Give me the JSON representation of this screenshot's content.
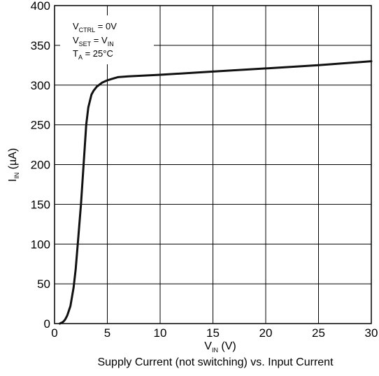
{
  "chart_data": {
    "type": "line",
    "title": "",
    "caption": "Supply Current (not switching) vs. Input Current",
    "xlabel": {
      "main": "V",
      "sub": "IN",
      "suffix": " (V)"
    },
    "ylabel": {
      "main": "I",
      "sub": "IN",
      "suffix": " (µA)"
    },
    "xlim": [
      0,
      30
    ],
    "ylim": [
      0,
      400
    ],
    "xticks": [
      0,
      5,
      10,
      15,
      20,
      25,
      30
    ],
    "yticks": [
      0,
      50,
      100,
      150,
      200,
      250,
      300,
      350,
      400
    ],
    "grid": true,
    "annotations": [
      {
        "main": "V",
        "sub": "CTRL",
        "rest": " = 0V"
      },
      {
        "main": "V",
        "sub": "SET",
        "rest": " = V",
        "sub2": "IN"
      },
      {
        "main": "T",
        "sub": "A",
        "rest": " = 25°C"
      }
    ],
    "series": [
      {
        "color": "#111111",
        "x": [
          0.5,
          0.8,
          1.0,
          1.2,
          1.5,
          1.8,
          2.0,
          2.2,
          2.5,
          2.8,
          3.0,
          3.2,
          3.5,
          3.7,
          4.0,
          4.5,
          5.0,
          5.5,
          6.0,
          7.0,
          10,
          15,
          20,
          25,
          30
        ],
        "y": [
          0,
          2,
          5,
          10,
          22,
          45,
          68,
          100,
          150,
          210,
          250,
          272,
          288,
          293,
          298,
          303,
          306,
          308,
          310,
          311,
          313,
          317,
          321,
          325,
          330
        ]
      }
    ]
  }
}
